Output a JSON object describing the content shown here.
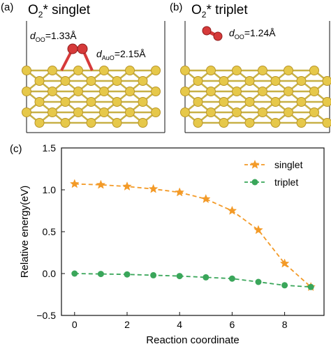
{
  "colors": {
    "gold_atom": "#e6c84a",
    "gold_atom_dark": "#b9962a",
    "gold_bond": "#c7b046",
    "oxygen_atom": "#d63a3a",
    "oxygen_atom_dark": "#8f1d1d",
    "singlet_series": "#f39a27",
    "triplet_series": "#3aa65a",
    "axis": "#111111"
  },
  "panels": {
    "a": {
      "label": "(a)",
      "title_main": "O",
      "title_sub": "2",
      "title_rest": "* singlet",
      "doo_label_main": "d",
      "doo_label_sub": "OO",
      "doo_value": "=1.33Å",
      "dauo_label_main": "d",
      "dauo_label_sub": "AuO",
      "dauo_value": "=2.15Å"
    },
    "b": {
      "label": "(b)",
      "title_main": "O",
      "title_sub": "2",
      "title_rest": "* triplet",
      "doo_label_main": "d",
      "doo_label_sub": "OO",
      "doo_value": "=1.24Å"
    },
    "c": {
      "label": "(c)"
    }
  },
  "chart_data": {
    "type": "line",
    "xlabel": "Reaction coordinate",
    "ylabel": "Relative energy(eV)",
    "xlim": [
      -0.5,
      9.5
    ],
    "ylim": [
      -0.5,
      1.5
    ],
    "x_ticks": [
      0,
      2,
      4,
      6,
      8
    ],
    "y_ticks": [
      -0.5,
      0.0,
      0.5,
      1.0,
      1.5
    ],
    "y_tick_labels": [
      "−0.5",
      "0.0",
      "0.5",
      "1.0",
      "1.5"
    ],
    "legend_position": "top-right",
    "grid": false,
    "x": [
      0,
      1,
      2,
      3,
      4,
      5,
      6,
      7,
      8,
      9
    ],
    "series": [
      {
        "name": "singlet",
        "marker": "star",
        "color": "#f39a27",
        "values": [
          1.07,
          1.06,
          1.04,
          1.01,
          0.97,
          0.89,
          0.75,
          0.52,
          0.12,
          -0.16
        ]
      },
      {
        "name": "triplet",
        "marker": "circle",
        "color": "#3aa65a",
        "values": [
          0.0,
          -0.005,
          -0.01,
          -0.02,
          -0.03,
          -0.045,
          -0.06,
          -0.1,
          -0.14,
          -0.16
        ]
      }
    ]
  }
}
